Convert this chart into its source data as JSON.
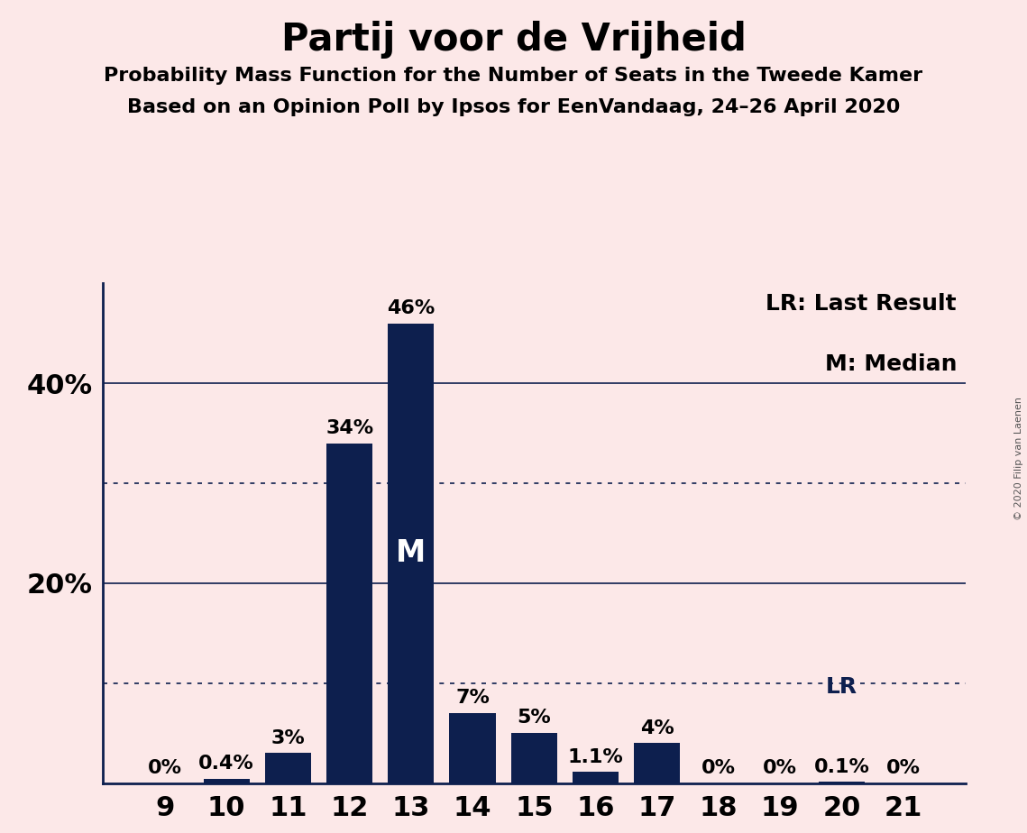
{
  "title": "Partij voor de Vrijheid",
  "subtitle1": "Probability Mass Function for the Number of Seats in the Tweede Kamer",
  "subtitle2": "Based on an Opinion Poll by Ipsos for EenVandaag, 24–26 April 2020",
  "categories": [
    9,
    10,
    11,
    12,
    13,
    14,
    15,
    16,
    17,
    18,
    19,
    20,
    21
  ],
  "values": [
    0.0,
    0.4,
    3.0,
    34.0,
    46.0,
    7.0,
    5.0,
    1.1,
    4.0,
    0.0,
    0.0,
    0.1,
    0.0
  ],
  "bar_labels": [
    "0%",
    "0.4%",
    "3%",
    "34%",
    "46%",
    "7%",
    "5%",
    "1.1%",
    "4%",
    "0%",
    "0%",
    "0.1%",
    "0%"
  ],
  "bar_color": "#0d1f4e",
  "background_color": "#fce8e8",
  "median_bar_seat": 13,
  "lr_bar_seat": 20,
  "ylim": [
    0,
    50
  ],
  "solid_gridlines": [
    20.0,
    40.0
  ],
  "dotted_gridlines": [
    10.0,
    30.0
  ],
  "ytick_positions": [
    20,
    40
  ],
  "ytick_labels": [
    "20%",
    "40%"
  ],
  "legend_lr": "LR: Last Result",
  "legend_m": "M: Median",
  "copyright": "© 2020 Filip van Laenen",
  "title_fontsize": 30,
  "subtitle_fontsize": 16,
  "tick_fontsize": 22,
  "bar_label_fontsize": 16,
  "legend_fontsize": 18,
  "median_label_fontsize": 24,
  "lr_label_fontsize": 18,
  "spine_color": "#0d1f4e",
  "gridline_color": "#0d1f4e"
}
